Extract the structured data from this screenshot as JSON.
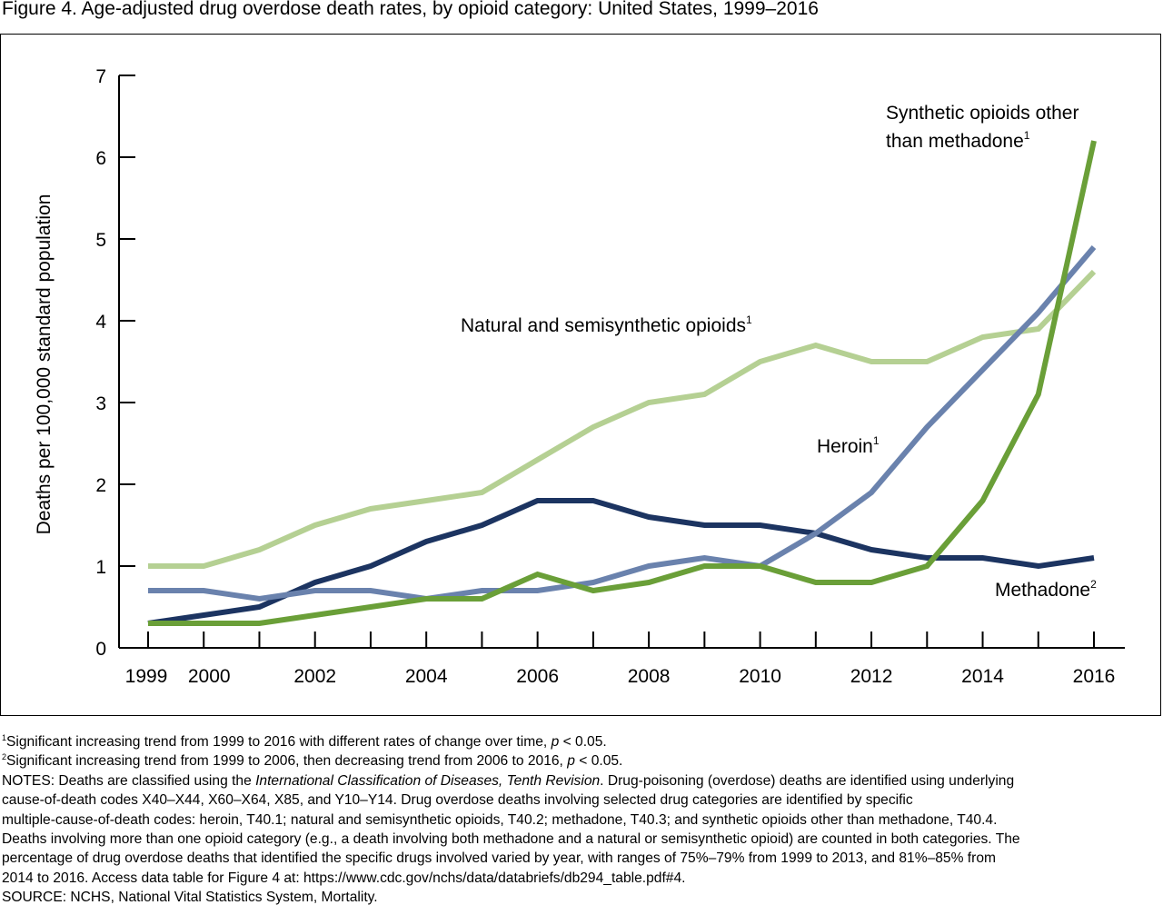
{
  "title": "Figure 4. Age-adjusted drug overdose death rates, by opioid category: United States, 1999–2016",
  "chart_data": {
    "type": "line",
    "title": "Figure 4. Age-adjusted drug overdose death rates, by opioid category: United States, 1999–2016",
    "xlabel": "",
    "ylabel": "Deaths per 100,000 standard population",
    "x": [
      1999,
      2000,
      2001,
      2002,
      2003,
      2004,
      2005,
      2006,
      2007,
      2008,
      2009,
      2010,
      2011,
      2012,
      2013,
      2014,
      2015,
      2016
    ],
    "xlim": [
      1999,
      2016
    ],
    "ylim": [
      0,
      7
    ],
    "x_tick_labels": [
      "1999",
      "2000",
      "2002",
      "2004",
      "2006",
      "2008",
      "2010",
      "2012",
      "2014",
      "2016"
    ],
    "x_tick_label_values": [
      1999,
      2000,
      2002,
      2004,
      2006,
      2008,
      2010,
      2012,
      2014,
      2016
    ],
    "y_ticks": [
      0,
      1,
      2,
      3,
      4,
      5,
      6,
      7
    ],
    "grid": false,
    "legend": "inline labels",
    "series": [
      {
        "name": "Natural and semisynthetic opioids",
        "sup": "1",
        "color": "#b5d093",
        "values": [
          1.0,
          1.0,
          1.2,
          1.5,
          1.7,
          1.8,
          1.9,
          2.3,
          2.7,
          3.0,
          3.1,
          3.5,
          3.7,
          3.5,
          3.5,
          3.8,
          3.9,
          4.6
        ]
      },
      {
        "name": "Methadone",
        "sup": "2",
        "color": "#1c3461",
        "values": [
          0.3,
          0.4,
          0.5,
          0.8,
          1.0,
          1.3,
          1.5,
          1.8,
          1.8,
          1.6,
          1.5,
          1.5,
          1.4,
          1.2,
          1.1,
          1.1,
          1.0,
          1.1
        ]
      },
      {
        "name": "Heroin",
        "sup": "1",
        "color": "#6a82ad",
        "values": [
          0.7,
          0.7,
          0.6,
          0.7,
          0.7,
          0.6,
          0.7,
          0.7,
          0.8,
          1.0,
          1.1,
          1.0,
          1.4,
          1.9,
          2.7,
          3.4,
          4.1,
          4.9
        ]
      },
      {
        "name": "Synthetic opioids other than methadone",
        "name_line1": "Synthetic opioids other",
        "name_line2": "than methadone",
        "sup": "1",
        "color": "#6a9f38",
        "values": [
          0.3,
          0.3,
          0.3,
          0.4,
          0.5,
          0.6,
          0.6,
          0.9,
          0.7,
          0.8,
          1.0,
          1.0,
          0.8,
          0.8,
          1.0,
          1.8,
          3.1,
          6.2
        ]
      }
    ]
  },
  "notes": {
    "fn1_sup": "1",
    "fn1": "Significant increasing trend from 1999 to 2016 with different rates of change over time, ",
    "fn1_p": "p",
    "fn1_end": " < 0.05.",
    "fn2_sup": "2",
    "fn2": "Significant increasing trend from 1999 to 2006, then decreasing trend from 2006 to 2016, ",
    "fn2_p": "p",
    "fn2_end": " < 0.05.",
    "notes_a": "NOTES: Deaths are classified using the ",
    "notes_icd": "International Classification of Diseases, Tenth Revision",
    "notes_b": ". Drug-poisoning (overdose) deaths are identified using underlying",
    "line4": "cause-of-death codes X40–X44, X60–X64, X85, and Y10–Y14. Drug overdose deaths involving selected drug categories are identified by specific",
    "line5": "multiple-cause-of-death codes:  heroin, T40.1; natural and semisynthetic opioids, T40.2;  methadone, T40.3; and synthetic opioids other than methadone, T40.4.",
    "line6": "Deaths involving more than one opioid category (e.g., a death involving both methadone and a natural or semisynthetic opioid) are counted in both categories. The",
    "line7": "percentage of drug overdose deaths that identified the specific drugs involved varied by year, with ranges of 75%–79% from 1999 to 2013, and 81%–85% from",
    "line8": "2014 to 2016. Access data table for Figure 4 at: https://www.cdc.gov/nchs/data/databriefs/db294_table.pdf#4.",
    "source": "SOURCE: NCHS, National Vital Statistics System, Mortality."
  }
}
